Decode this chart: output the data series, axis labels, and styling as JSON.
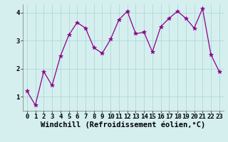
{
  "x": [
    0,
    1,
    2,
    3,
    4,
    5,
    6,
    7,
    8,
    9,
    10,
    11,
    12,
    13,
    14,
    15,
    16,
    17,
    18,
    19,
    20,
    21,
    22,
    23
  ],
  "y": [
    1.2,
    0.7,
    1.9,
    1.4,
    2.45,
    3.2,
    3.65,
    3.45,
    2.75,
    2.55,
    3.05,
    3.75,
    4.05,
    3.25,
    3.3,
    2.6,
    3.5,
    3.8,
    4.05,
    3.8,
    3.45,
    4.15,
    2.5,
    1.9
  ],
  "line_color": "#8b008b",
  "marker": "*",
  "marker_size": 4,
  "bg_color": "#d5efef",
  "grid_color": "#b0d8d8",
  "xlabel": "Windchill (Refroidissement éolien,°C)",
  "xlim": [
    -0.5,
    23.5
  ],
  "ylim": [
    0.5,
    4.3
  ],
  "yticks": [
    1,
    2,
    3,
    4
  ],
  "xtick_labels": [
    "0",
    "1",
    "2",
    "3",
    "4",
    "5",
    "6",
    "7",
    "8",
    "9",
    "10",
    "11",
    "12",
    "13",
    "14",
    "15",
    "16",
    "17",
    "18",
    "19",
    "20",
    "21",
    "22",
    "23"
  ],
  "tick_label_size": 6.5,
  "xlabel_size": 7.5
}
